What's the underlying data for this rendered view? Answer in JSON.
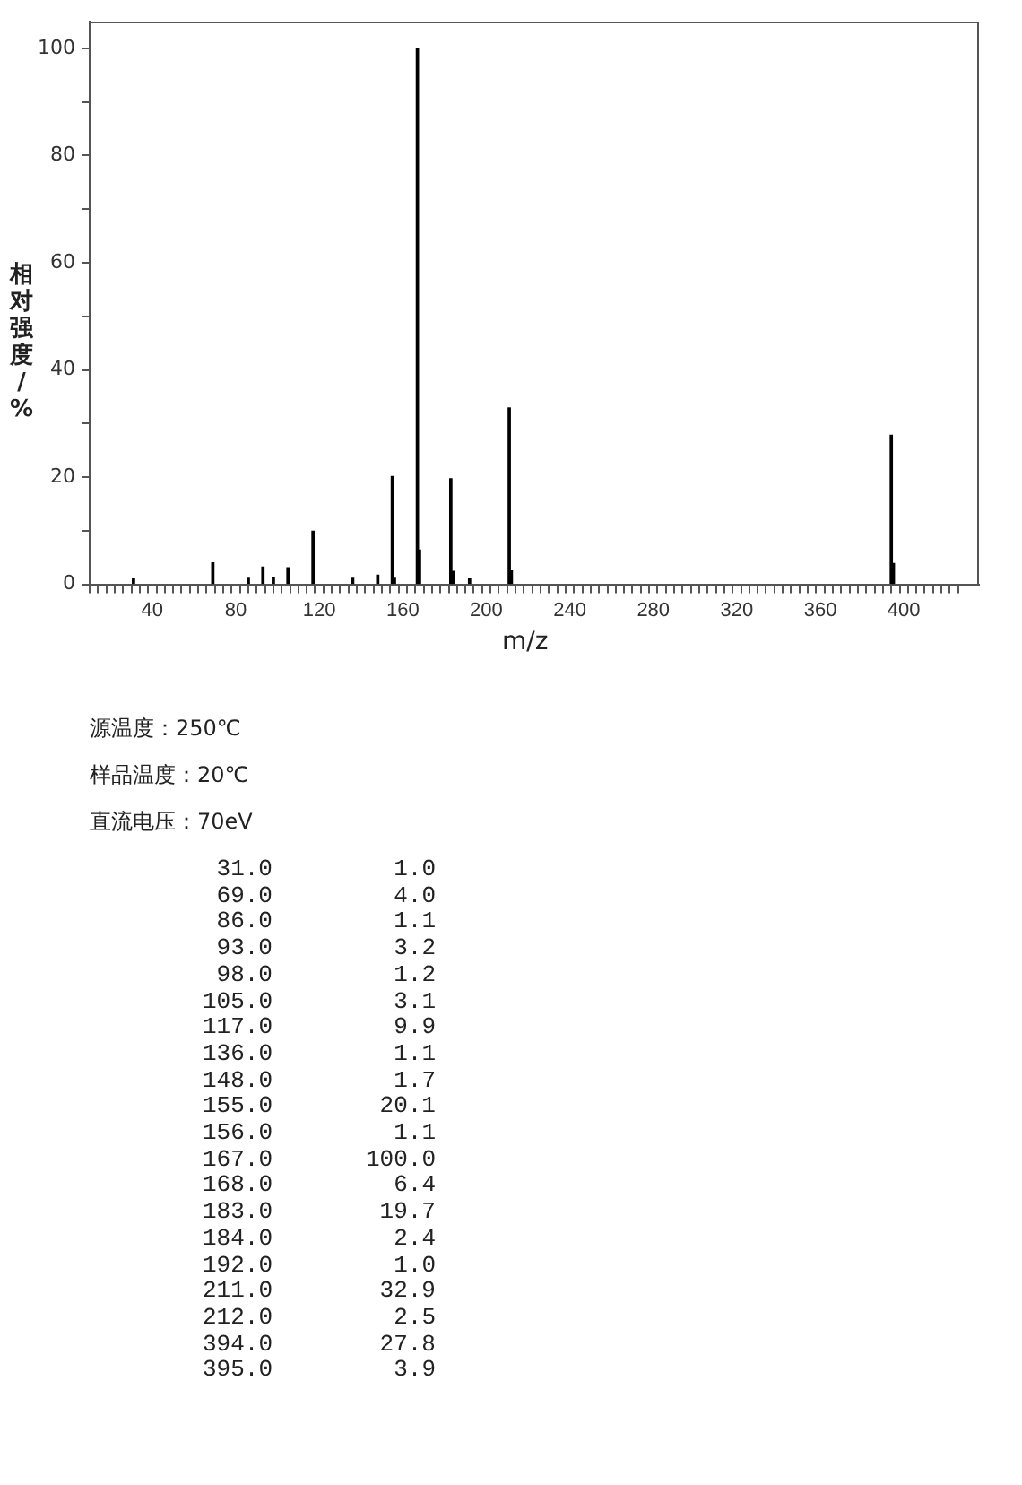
{
  "chart_data": {
    "type": "bar",
    "xlabel": "m/z",
    "ylabel": "相对强度/%",
    "x": [
      31,
      69,
      86,
      93,
      98,
      105,
      117,
      136,
      148,
      155,
      156,
      167,
      168,
      183,
      184,
      192,
      211,
      212,
      394,
      395
    ],
    "values": [
      1.0,
      4.0,
      1.1,
      3.2,
      1.2,
      3.1,
      9.9,
      1.1,
      1.7,
      20.1,
      1.1,
      100.0,
      6.4,
      19.7,
      2.4,
      1.0,
      32.9,
      2.5,
      27.8,
      3.9
    ],
    "color": "#000000",
    "xlim": [
      10,
      436
    ],
    "xticks": [
      {
        "value": 12,
        "label": null
      },
      {
        "value": 16,
        "label": null
      },
      {
        "value": 20,
        "label": null
      },
      {
        "value": 24,
        "label": null
      },
      {
        "value": 28,
        "label": null
      },
      {
        "value": 32,
        "label": null
      },
      {
        "value": 36,
        "label": null
      },
      40,
      {
        "value": 44,
        "label": null
      },
      {
        "value": 48,
        "label": null
      },
      {
        "value": 52,
        "label": null
      },
      {
        "value": 56,
        "label": null
      },
      {
        "value": 60,
        "label": null
      },
      {
        "value": 64,
        "label": null
      },
      {
        "value": 68,
        "label": null
      },
      {
        "value": 72,
        "label": null
      },
      {
        "value": 76,
        "label": null
      },
      80,
      {
        "value": 84,
        "label": null
      },
      {
        "value": 88,
        "label": null
      },
      {
        "value": 92,
        "label": null
      },
      {
        "value": 96,
        "label": null
      },
      {
        "value": 100,
        "label": null
      },
      {
        "value": 104,
        "label": null
      },
      {
        "value": 108,
        "label": null
      },
      {
        "value": 112,
        "label": null
      },
      {
        "value": 116,
        "label": null
      },
      120,
      {
        "value": 124,
        "label": null
      },
      {
        "value": 128,
        "label": null
      },
      {
        "value": 132,
        "label": null
      },
      {
        "value": 136,
        "label": null
      },
      {
        "value": 140,
        "label": null
      },
      {
        "value": 144,
        "label": null
      },
      {
        "value": 148,
        "label": null
      },
      {
        "value": 152,
        "label": null
      },
      {
        "value": 156,
        "label": null
      },
      160,
      {
        "value": 164,
        "label": null
      },
      {
        "value": 168,
        "label": null
      },
      {
        "value": 172,
        "label": null
      },
      {
        "value": 176,
        "label": null
      },
      {
        "value": 180,
        "label": null
      },
      {
        "value": 184,
        "label": null
      },
      {
        "value": 188,
        "label": null
      },
      {
        "value": 192,
        "label": null
      },
      {
        "value": 196,
        "label": null
      },
      200,
      {
        "value": 204,
        "label": null
      },
      {
        "value": 208,
        "label": null
      },
      {
        "value": 212,
        "label": null
      },
      {
        "value": 216,
        "label": null
      },
      {
        "value": 220,
        "label": null
      },
      {
        "value": 224,
        "label": null
      },
      {
        "value": 228,
        "label": null
      },
      {
        "value": 232,
        "label": null
      },
      {
        "value": 236,
        "label": null
      },
      240,
      {
        "value": 244,
        "label": null
      },
      {
        "value": 248,
        "label": null
      },
      {
        "value": 252,
        "label": null
      },
      {
        "value": 256,
        "label": null
      },
      {
        "value": 260,
        "label": null
      },
      {
        "value": 264,
        "label": null
      },
      {
        "value": 268,
        "label": null
      },
      {
        "value": 272,
        "label": null
      },
      {
        "value": 276,
        "label": null
      },
      280,
      {
        "value": 284,
        "label": null
      },
      {
        "value": 288,
        "label": null
      },
      {
        "value": 292,
        "label": null
      },
      {
        "value": 296,
        "label": null
      },
      {
        "value": 300,
        "label": null
      },
      {
        "value": 304,
        "label": null
      },
      {
        "value": 308,
        "label": null
      },
      {
        "value": 312,
        "label": null
      },
      {
        "value": 316,
        "label": null
      },
      320,
      {
        "value": 324,
        "label": null
      },
      {
        "value": 328,
        "label": null
      },
      {
        "value": 332,
        "label": null
      },
      {
        "value": 336,
        "label": null
      },
      {
        "value": 340,
        "label": null
      },
      {
        "value": 344,
        "label": null
      },
      {
        "value": 348,
        "label": null
      },
      {
        "value": 352,
        "label": null
      },
      {
        "value": 356,
        "label": null
      },
      360,
      {
        "value": 364,
        "label": null
      },
      {
        "value": 368,
        "label": null
      },
      {
        "value": 372,
        "label": null
      },
      {
        "value": 376,
        "label": null
      },
      {
        "value": 380,
        "label": null
      },
      {
        "value": 384,
        "label": null
      },
      {
        "value": 388,
        "label": null
      },
      {
        "value": 392,
        "label": null
      },
      {
        "value": 396,
        "label": null
      },
      400,
      {
        "value": 404,
        "label": null
      },
      {
        "value": 408,
        "label": null
      },
      {
        "value": 412,
        "label": null
      },
      {
        "value": 416,
        "label": null
      },
      {
        "value": 420,
        "label": null
      },
      {
        "value": 424,
        "label": null
      }
    ],
    "ylim": [
      0,
      105
    ],
    "yticks": [
      0,
      {
        "value": 10,
        "label": null
      },
      20,
      {
        "value": 30,
        "label": null
      },
      40,
      {
        "value": 50,
        "label": null
      },
      60,
      {
        "value": 70,
        "label": null
      },
      80,
      {
        "value": 90,
        "label": null
      },
      100
    ],
    "grid": false,
    "legend": false,
    "annotations": [
      "源温度：250℃",
      "样品温度：20℃",
      "直流电压：70eV",
      "31.0",
      "1.0",
      "69.0",
      "4.0",
      "86.0",
      "1.1",
      "93.0",
      "3.2",
      "98.0",
      "1.2",
      "105.0",
      "3.1",
      "117.0",
      "9.9",
      "136.0",
      "1.1",
      "148.0",
      "1.7",
      "155.0",
      "20.1",
      "156.0",
      "1.1",
      "167.0",
      "100.0",
      "168.0",
      "6.4",
      "183.0",
      "19.7",
      "184.0",
      "2.4",
      "192.0",
      "1.0",
      "211.0",
      "32.9",
      "212.0",
      "2.5",
      "394.0",
      "27.8",
      "395.0",
      "3.9"
    ]
  }
}
